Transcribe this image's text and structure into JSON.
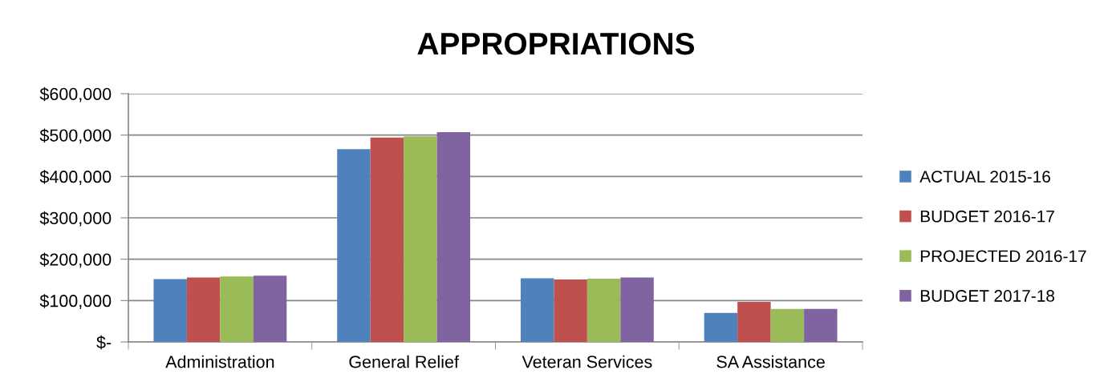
{
  "chart_data": {
    "type": "bar",
    "title": "APPROPRIATIONS",
    "categories": [
      "Administration",
      "General Relief",
      "Veteran Services",
      "SA Assistance"
    ],
    "series": [
      {
        "name": "ACTUAL 2015-16",
        "color": "#4f81bd",
        "values": [
          152000,
          466000,
          154000,
          70000
        ]
      },
      {
        "name": "BUDGET 2016-17",
        "color": "#c0504d",
        "values": [
          156000,
          494000,
          151000,
          97000
        ]
      },
      {
        "name": "PROJECTED 2016-17",
        "color": "#9bbb59",
        "values": [
          158000,
          497000,
          153000,
          80000
        ]
      },
      {
        "name": "BUDGET 2017-18",
        "color": "#8064a2",
        "values": [
          160000,
          507000,
          156000,
          80000
        ]
      }
    ],
    "ylim": [
      0,
      600000
    ],
    "yticks": [
      {
        "value": 0,
        "label": "$-"
      },
      {
        "value": 100000,
        "label": "$100,000"
      },
      {
        "value": 200000,
        "label": "$200,000"
      },
      {
        "value": 300000,
        "label": "$300,000"
      },
      {
        "value": 400000,
        "label": "$400,000"
      },
      {
        "value": 500000,
        "label": "$500,000"
      },
      {
        "value": 600000,
        "label": "$600,000"
      }
    ],
    "grid": "y",
    "legend": "right"
  }
}
